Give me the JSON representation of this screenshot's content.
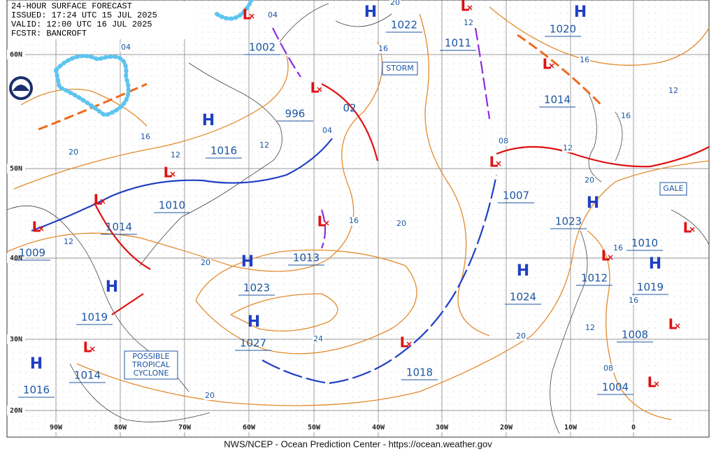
{
  "header": {
    "lines": [
      "24-HOUR SURFACE FORECAST",
      "ISSUED: 17:24 UTC 15 JUL 2025",
      "VALID:  12:00 UTC 16 JUL 2025",
      "FCSTR:  BANCROFT"
    ]
  },
  "footer": "NWS/NCEP - Ocean Prediction Center - https://ocean.weather.gov",
  "highs": [
    {
      "symbol": "H",
      "pressure": "1022"
    },
    {
      "symbol": "H",
      "pressure": "1020"
    },
    {
      "symbol": "H",
      "pressure": "1016"
    },
    {
      "symbol": "H",
      "pressure": "1019"
    },
    {
      "symbol": "H",
      "pressure": "1023"
    },
    {
      "symbol": "H",
      "pressure": "1027"
    },
    {
      "symbol": "H",
      "pressure": "1016"
    },
    {
      "symbol": "H",
      "pressure": "1024"
    },
    {
      "symbol": "H",
      "pressure": "1023"
    },
    {
      "symbol": "H",
      "pressure": "1019"
    }
  ],
  "lows": [
    {
      "symbol": "L",
      "pressure": "1002"
    },
    {
      "symbol": "L",
      "pressure": "996"
    },
    {
      "symbol": "L",
      "pressure": "1011"
    },
    {
      "symbol": "L",
      "pressure": "1014"
    },
    {
      "symbol": "L",
      "pressure": "1007"
    },
    {
      "symbol": "L",
      "pressure": "1010"
    },
    {
      "symbol": "L",
      "pressure": "1014"
    },
    {
      "symbol": "L",
      "pressure": "1009"
    },
    {
      "symbol": "L",
      "pressure": "1013"
    },
    {
      "symbol": "L",
      "pressure": "1018"
    },
    {
      "symbol": "L",
      "pressure": "1014"
    },
    {
      "symbol": "L",
      "pressure": "1012"
    },
    {
      "symbol": "L",
      "pressure": "1010"
    },
    {
      "symbol": "L",
      "pressure": "1008"
    },
    {
      "symbol": "L",
      "pressure": "1004"
    }
  ],
  "isobar_labels": [
    "02"
  ],
  "contour_labels": [
    "04",
    "20",
    "16",
    "12",
    "04",
    "16",
    "20",
    "12",
    "12",
    "04",
    "16",
    "20",
    "20",
    "24",
    "20",
    "20",
    "12",
    "08",
    "16",
    "12",
    "16",
    "12",
    "20",
    "16",
    "16",
    "12",
    "08"
  ],
  "latitude_labels": [
    "60N",
    "50N",
    "40N",
    "30N",
    "20N"
  ],
  "longitude_labels": [
    "90W",
    "80W",
    "70W",
    "60W",
    "50W",
    "40W",
    "30W",
    "20W",
    "10W",
    "0"
  ],
  "warnings": [
    "STORM",
    "GALE"
  ],
  "tropical_note": [
    "POSSIBLE",
    "TROPICAL",
    "CYCLONE"
  ]
}
